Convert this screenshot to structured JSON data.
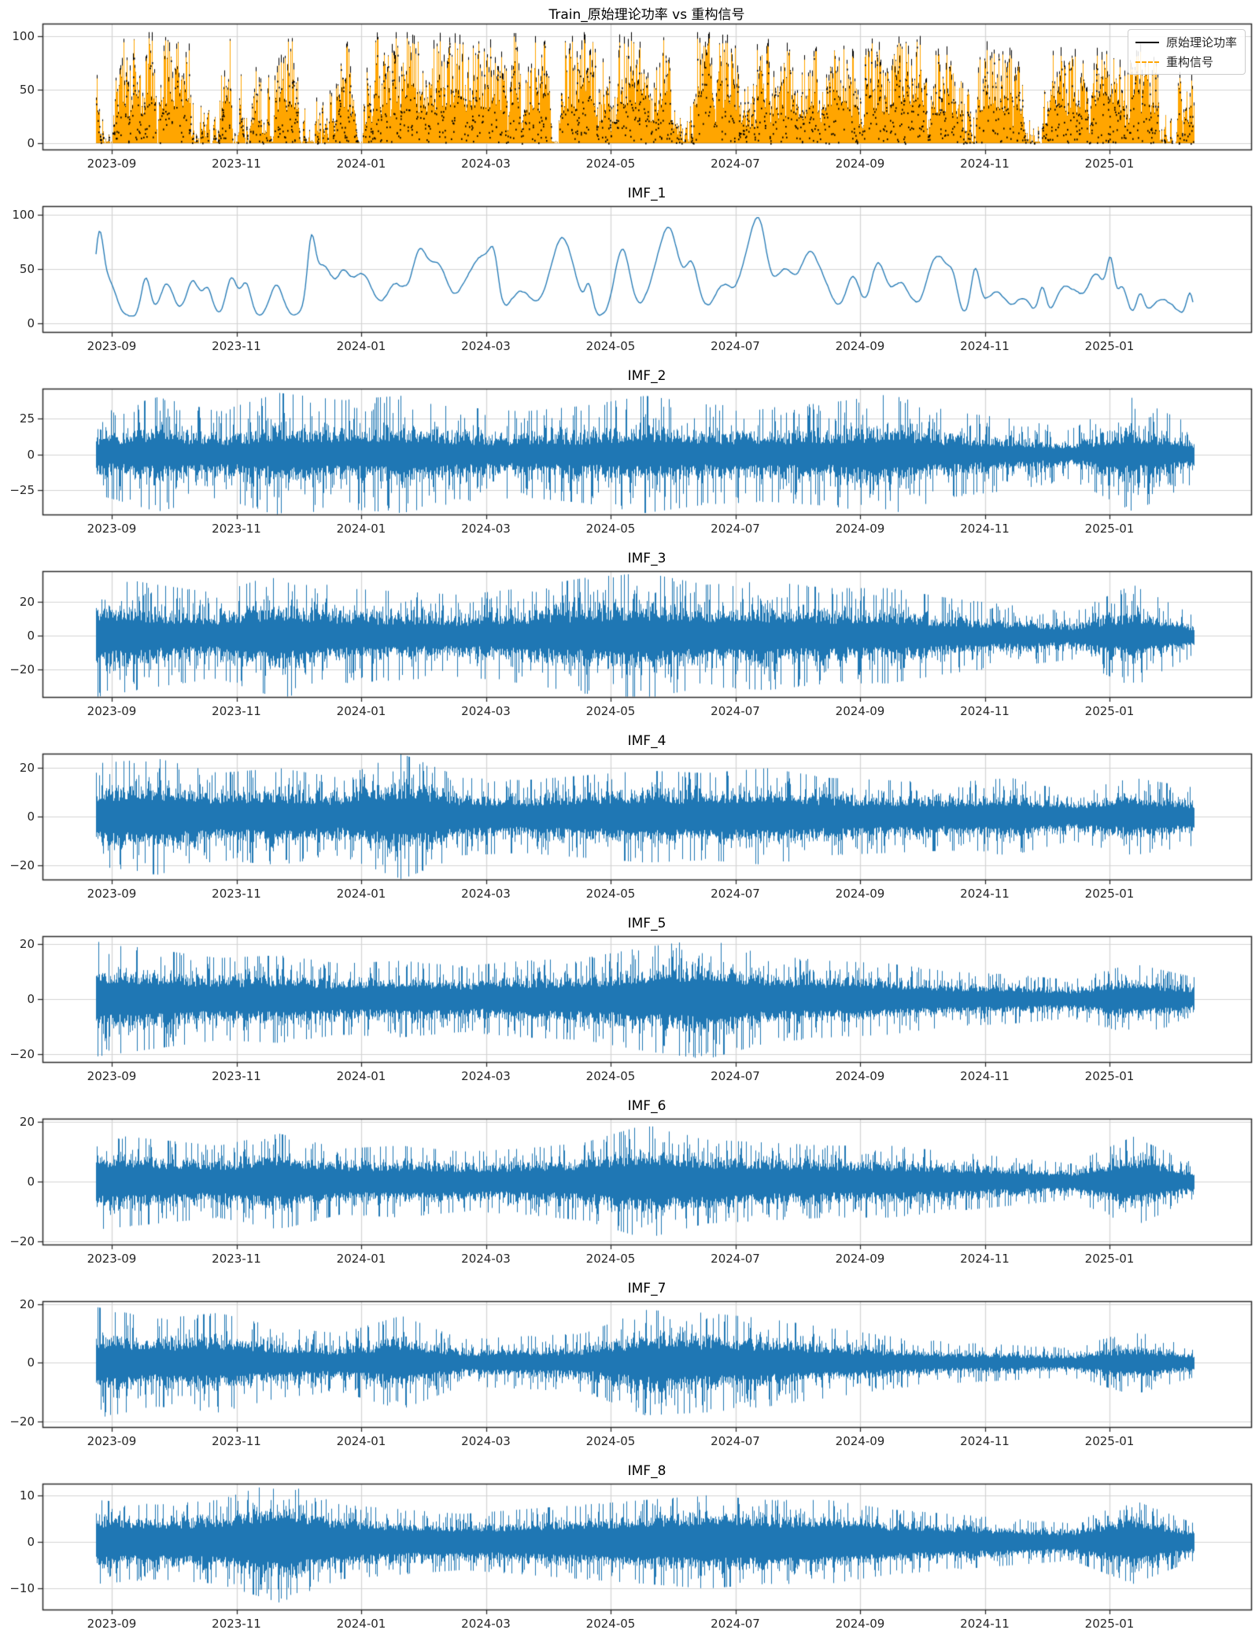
{
  "figure": {
    "background": "#ffffff"
  },
  "xticks": [
    "2023-09",
    "2023-11",
    "2024-01",
    "2024-03",
    "2024-05",
    "2024-07",
    "2024-09",
    "2024-11",
    "2025-01"
  ],
  "colors": {
    "imf_line": "#1f77b4",
    "original_line": "#000000",
    "reconstructed_line": "#FFA500",
    "grid": "#d3d3d3",
    "spine": "#2b2b2b",
    "tick": "#262626"
  },
  "legend": {
    "items": [
      {
        "label": "原始理论功率",
        "color": "#000000",
        "style": "solid"
      },
      {
        "label": "重构信号",
        "color": "#FFA500",
        "style": "dashed"
      }
    ]
  },
  "chart_data": [
    {
      "type": "line",
      "kind": "overlay",
      "title": "Train_原始理论功率 vs 重构信号",
      "x_range": [
        "2023-08",
        "2025-02"
      ],
      "ylim": [
        -6,
        112
      ],
      "value_range": [
        0,
        102
      ],
      "yticks": [
        {
          "label": "0",
          "v": 0
        },
        {
          "label": "50",
          "v": 50
        },
        {
          "label": "100",
          "v": 100
        }
      ],
      "series": [
        {
          "name": "原始理论功率",
          "color": "#000000",
          "style": "solid"
        },
        {
          "name": "重构信号",
          "color": "#FFA500",
          "style": "dashed"
        }
      ],
      "legend_position": "upper right",
      "envelope": [
        90,
        100,
        98,
        95,
        92,
        100,
        96,
        100,
        97,
        95,
        100,
        96,
        95,
        98,
        90,
        85,
        80,
        95,
        70
      ],
      "seed": 11
    },
    {
      "type": "line",
      "kind": "peaks",
      "title": "IMF_1",
      "ylim": [
        -8,
        108
      ],
      "yticks": [
        {
          "label": "0",
          "v": 0
        },
        {
          "label": "50",
          "v": 50
        },
        {
          "label": "100",
          "v": 100
        }
      ],
      "color": "#1f77b4",
      "envelope": [
        85,
        100,
        78,
        88,
        70,
        97,
        58,
        68,
        72,
        85,
        78,
        82,
        88,
        86,
        60,
        50,
        38,
        62,
        30
      ],
      "seed": 22
    },
    {
      "type": "line",
      "kind": "noise",
      "title": "IMF_2",
      "ylim": [
        -42,
        46
      ],
      "core": 0.2,
      "yticks": [
        {
          "label": "−25",
          "v": -25
        },
        {
          "label": "0",
          "v": 0
        },
        {
          "label": "25",
          "v": 25
        }
      ],
      "color": "#1f77b4",
      "envelope": [
        28,
        40,
        30,
        43,
        38,
        41,
        33,
        30,
        34,
        41,
        35,
        33,
        36,
        42,
        30,
        25,
        18,
        40,
        20
      ],
      "seed": 33
    },
    {
      "type": "line",
      "kind": "noise",
      "title": "IMF_3",
      "ylim": [
        -36,
        38
      ],
      "core": 0.24,
      "yticks": [
        {
          "label": "−20",
          "v": -20
        },
        {
          "label": "0",
          "v": 0
        },
        {
          "label": "20",
          "v": 20
        }
      ],
      "color": "#1f77b4",
      "envelope": [
        36,
        30,
        25,
        37,
        28,
        26,
        24,
        28,
        34,
        37,
        30,
        32,
        28,
        28,
        22,
        18,
        14,
        30,
        12
      ],
      "seed": 44
    },
    {
      "type": "line",
      "kind": "noise",
      "title": "IMF_4",
      "ylim": [
        -26,
        26
      ],
      "core": 0.28,
      "yticks": [
        {
          "label": "−20",
          "v": -20
        },
        {
          "label": "0",
          "v": 0
        },
        {
          "label": "20",
          "v": 20
        }
      ],
      "color": "#1f77b4",
      "envelope": [
        22,
        24,
        18,
        20,
        16,
        26,
        16,
        15,
        17,
        19,
        18,
        20,
        16,
        15,
        14,
        16,
        10,
        16,
        12
      ],
      "seed": 55
    },
    {
      "type": "line",
      "kind": "noise",
      "title": "IMF_5",
      "ylim": [
        -23,
        23
      ],
      "core": 0.28,
      "yticks": [
        {
          "label": "−20",
          "v": -20
        },
        {
          "label": "0",
          "v": 0
        },
        {
          "label": "20",
          "v": 20
        }
      ],
      "color": "#1f77b4",
      "envelope": [
        21,
        18,
        15,
        16,
        13,
        14,
        12,
        14,
        15,
        19,
        22,
        16,
        14,
        13,
        10,
        9,
        7,
        13,
        8
      ],
      "seed": 66
    },
    {
      "type": "line",
      "kind": "noise",
      "title": "IMF_6",
      "ylim": [
        -21,
        21
      ],
      "core": 0.3,
      "yticks": [
        {
          "label": "−20",
          "v": -20
        },
        {
          "label": "0",
          "v": 0
        },
        {
          "label": "20",
          "v": 20
        }
      ],
      "color": "#1f77b4",
      "envelope": [
        16,
        14,
        12,
        16,
        11,
        12,
        10,
        11,
        13,
        19,
        14,
        13,
        12,
        12,
        10,
        8,
        6,
        15,
        6
      ],
      "seed": 77
    },
    {
      "type": "line",
      "kind": "noise",
      "title": "IMF_7",
      "ylim": [
        -22,
        21
      ],
      "core": 0.26,
      "yticks": [
        {
          "label": "−20",
          "v": -20
        },
        {
          "label": "0",
          "v": 0
        },
        {
          "label": "20",
          "v": 20
        }
      ],
      "color": "#1f77b4",
      "envelope": [
        19,
        15,
        17,
        12,
        10,
        16,
        8,
        9,
        10,
        18,
        17,
        15,
        12,
        9,
        7,
        6,
        5,
        11,
        5
      ],
      "seed": 88
    },
    {
      "type": "line",
      "kind": "noise",
      "title": "IMF_8",
      "ylim": [
        -14.5,
        12.5
      ],
      "core": 0.34,
      "yticks": [
        {
          "label": "−10",
          "v": -10
        },
        {
          "label": "0",
          "v": 0
        },
        {
          "label": "10",
          "v": 10
        }
      ],
      "color": "#1f77b4",
      "envelope": [
        9,
        8,
        9,
        13,
        8,
        7,
        6,
        7,
        8,
        9,
        10,
        9,
        9,
        7,
        6,
        5,
        4,
        9,
        4
      ],
      "seed": 99
    }
  ]
}
